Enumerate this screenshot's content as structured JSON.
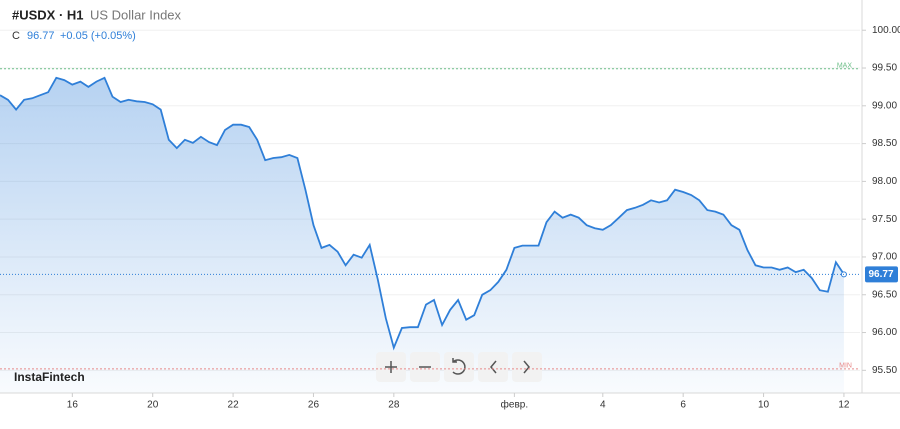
{
  "chart_data": {
    "type": "area-line",
    "symbol": "#USDX · H1",
    "subtitle": "US Dollar Index",
    "close_prefix": "C",
    "close": 96.77,
    "change_label": "+0.05 (+0.05%)",
    "brand": "InstaFintech",
    "color": "#2f7fd8",
    "grid": true,
    "max_line": {
      "value": 99.49,
      "label": "MAX",
      "color": "#6fbf8a"
    },
    "min_line": {
      "value": 95.52,
      "label": "MIN",
      "color": "#e88a8a"
    },
    "xlim": [
      0,
      107
    ],
    "xticks": [
      {
        "value": 9,
        "label": "16"
      },
      {
        "value": 19,
        "label": "20"
      },
      {
        "value": 29,
        "label": "22"
      },
      {
        "value": 39,
        "label": "26"
      },
      {
        "value": 49,
        "label": "28"
      },
      {
        "value": 64,
        "label": "февр."
      },
      {
        "value": 75,
        "label": "4"
      },
      {
        "value": 85,
        "label": "6"
      },
      {
        "value": 95,
        "label": "10"
      },
      {
        "value": 105,
        "label": "12"
      }
    ],
    "ylim": [
      95.2,
      100.4
    ],
    "yticks": [
      {
        "value": 95.5,
        "label": "95.50"
      },
      {
        "value": 96,
        "label": "96.00"
      },
      {
        "value": 96.5,
        "label": "96.50"
      },
      {
        "value": 97,
        "label": "97.00"
      },
      {
        "value": 97.5,
        "label": "97.50"
      },
      {
        "value": 98,
        "label": "98.00"
      },
      {
        "value": 98.5,
        "label": "98.50"
      },
      {
        "value": 99,
        "label": "99.00"
      },
      {
        "value": 99.5,
        "label": "99.50"
      },
      {
        "value": 100,
        "label": "100.00"
      }
    ],
    "values": [
      99.14,
      99.08,
      98.95,
      99.08,
      99.1,
      99.14,
      99.18,
      99.37,
      99.34,
      99.28,
      99.32,
      99.25,
      99.32,
      99.37,
      99.12,
      99.05,
      99.08,
      99.06,
      99.05,
      99.02,
      98.95,
      98.55,
      98.44,
      98.55,
      98.51,
      98.59,
      98.52,
      98.48,
      98.68,
      98.75,
      98.75,
      98.72,
      98.55,
      98.28,
      98.31,
      98.32,
      98.35,
      98.31,
      97.89,
      97.42,
      97.12,
      97.16,
      97.07,
      96.89,
      97.03,
      96.99,
      97.16,
      96.7,
      96.19,
      95.8,
      96.06,
      96.07,
      96.07,
      96.37,
      96.43,
      96.1,
      96.3,
      96.43,
      96.17,
      96.23,
      96.5,
      96.56,
      96.67,
      96.83,
      97.12,
      97.15,
      97.15,
      97.15,
      97.46,
      97.6,
      97.52,
      97.56,
      97.52,
      97.42,
      97.38,
      97.36,
      97.42,
      97.52,
      97.62,
      97.65,
      97.69,
      97.75,
      97.72,
      97.75,
      97.89,
      97.86,
      97.82,
      97.75,
      97.62,
      97.6,
      97.56,
      97.42,
      97.36,
      97.09,
      96.89,
      96.86,
      96.86,
      96.83,
      96.86,
      96.8,
      96.83,
      96.72,
      96.56,
      96.54,
      96.93,
      96.77
    ]
  }
}
